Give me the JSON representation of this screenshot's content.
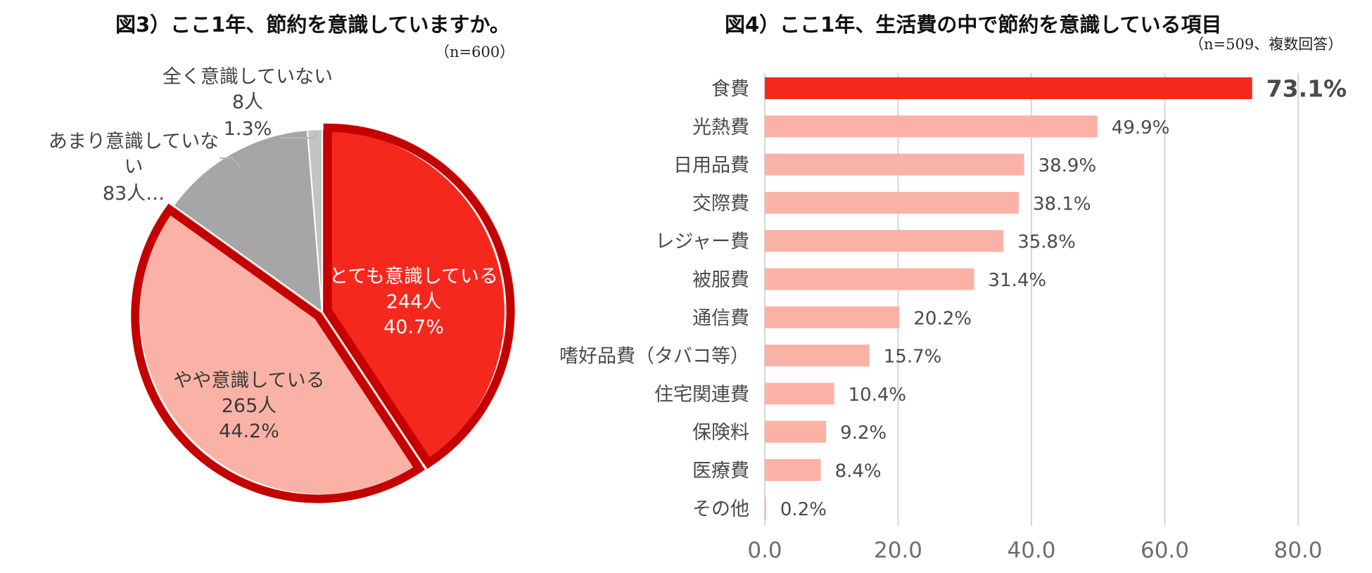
{
  "left": {
    "title": "図3）ここ1年、節約を意識していますか。",
    "note": "（n=600）",
    "chart_data": {
      "type": "pie",
      "title": "図3）ここ1年、節約を意識していますか。",
      "n_note": "（n=600）",
      "slices": [
        {
          "name": "とても意識している",
          "count_label": "244人",
          "percent_label": "40.7%",
          "value": 40.7,
          "color": "#f5281e"
        },
        {
          "name": "やや意識している",
          "count_label": "265人",
          "percent_label": "44.2%",
          "value": 44.2,
          "color": "#fbb2a6"
        },
        {
          "name": "あまり意識していな\nい",
          "count_label": "83人…",
          "percent_label": "",
          "value": 13.8,
          "color": "#a6a6a6"
        },
        {
          "name": "全く意識していない",
          "count_label": "8人",
          "percent_label": "1.3%",
          "value": 1.3,
          "color": "#c3c3c3"
        }
      ],
      "highlight_border": "#c40000"
    }
  },
  "right": {
    "title": "図4）ここ1年、生活費の中で節約を意識している項目",
    "note": "（n=509、複数回答）",
    "chart_data": {
      "type": "bar",
      "orientation": "horizontal",
      "title": "図4）ここ1年、生活費の中で節約を意識している項目",
      "n_note": "（n=509、複数回答）",
      "categories": [
        "食費",
        "光熱費",
        "日用品費",
        "交際費",
        "レジャー費",
        "被服費",
        "通信費",
        "嗜好品費（タバコ等）",
        "住宅関連費",
        "保険料",
        "医療費",
        "その他"
      ],
      "values": [
        73.1,
        49.9,
        38.9,
        38.1,
        35.8,
        31.4,
        20.2,
        15.7,
        10.4,
        9.2,
        8.4,
        0.2
      ],
      "value_labels": [
        "73.1%",
        "49.9%",
        "38.9%",
        "38.1%",
        "35.8%",
        "31.4%",
        "20.2%",
        "15.7%",
        "10.4%",
        "9.2%",
        "8.4%",
        "0.2%"
      ],
      "xlim": [
        0,
        80
      ],
      "xticks": [
        "0.0",
        "20.0",
        "40.0",
        "60.0",
        "80.0"
      ],
      "grid": true,
      "highlight_color": "#f5281e",
      "bar_color": "#fbb2a6"
    }
  }
}
